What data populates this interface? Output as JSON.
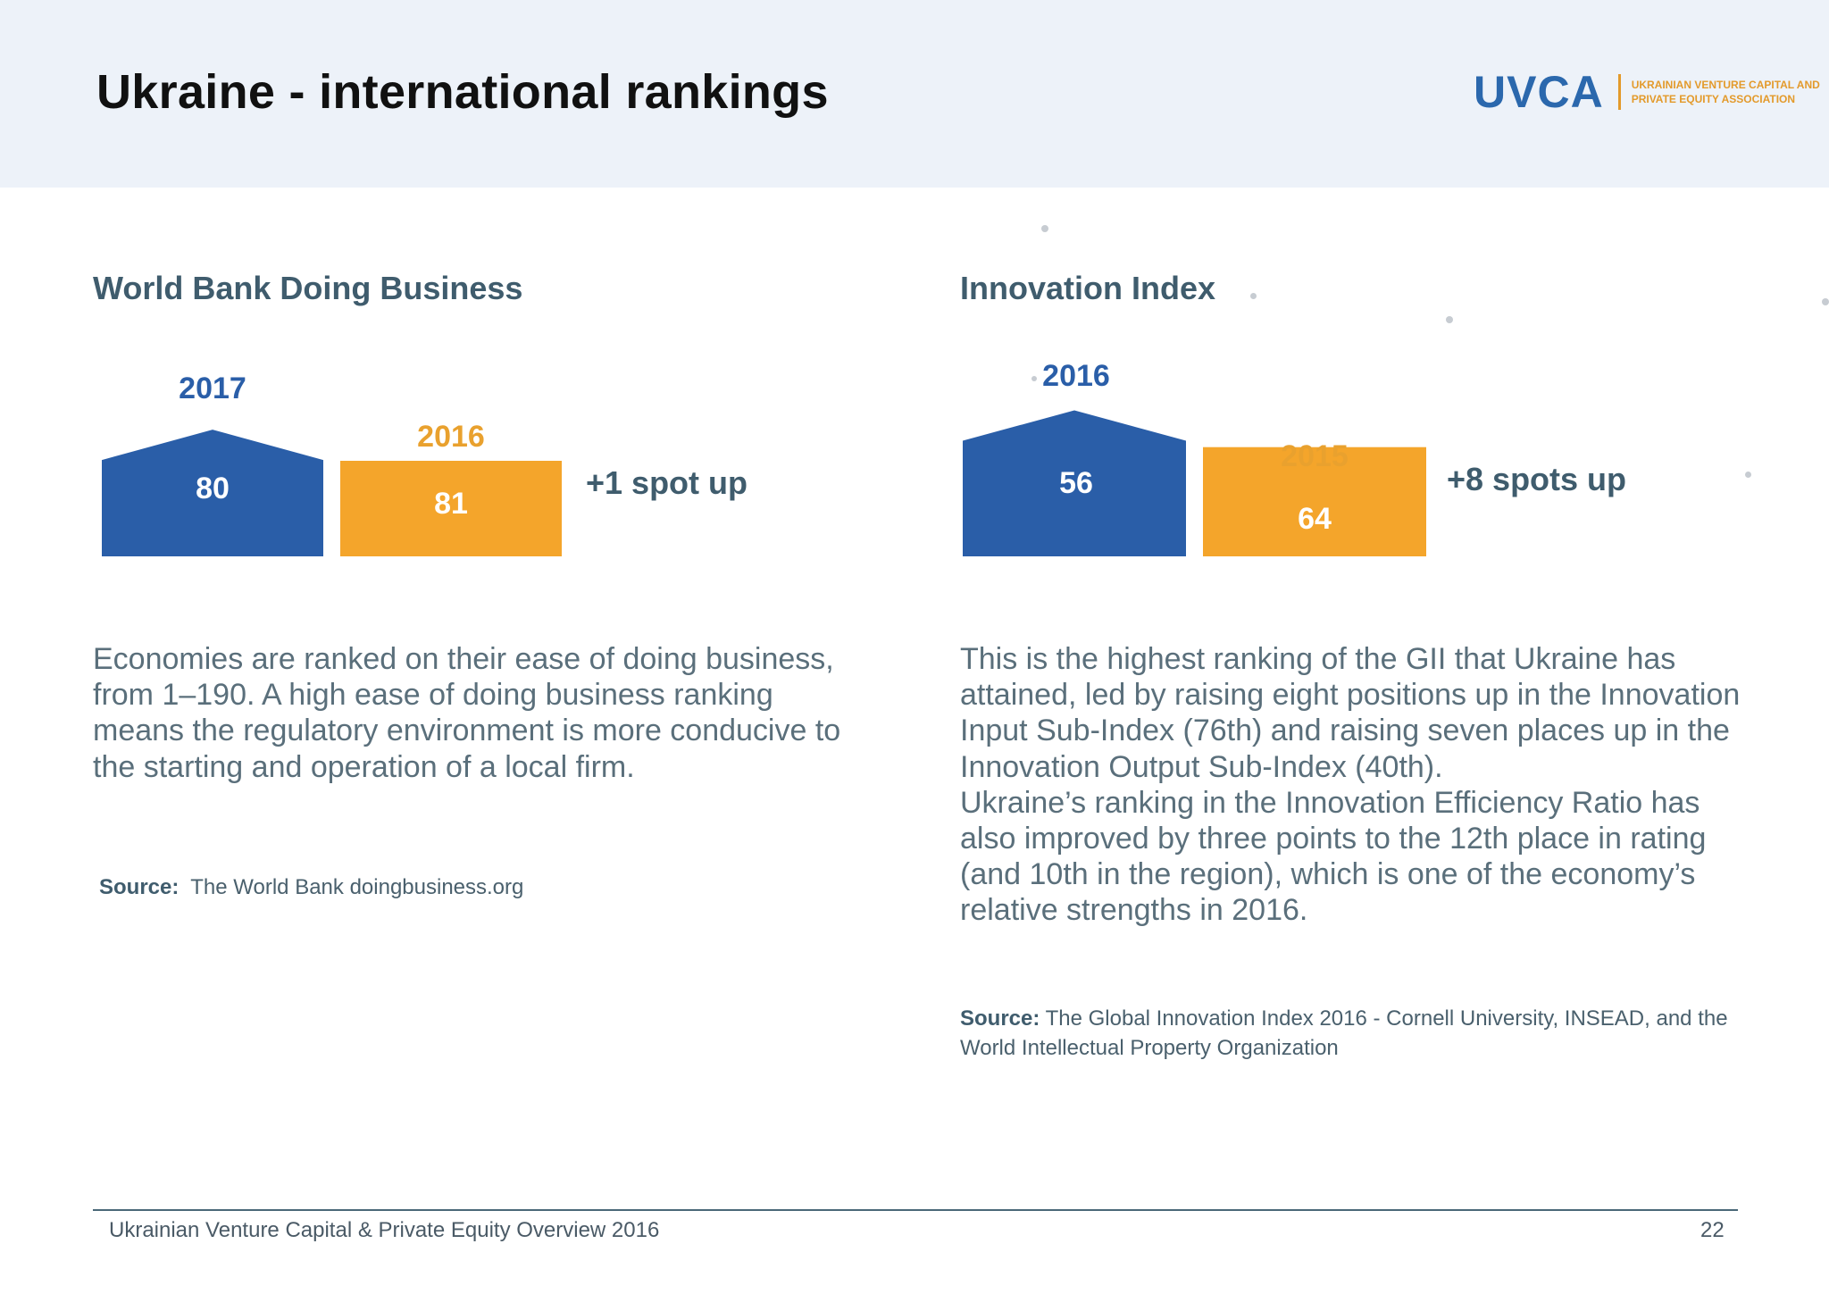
{
  "header": {
    "title": "Ukraine - international rankings",
    "logo": {
      "mark": "UVCA",
      "line1": "UKRAINIAN VENTURE CAPITAL AND",
      "line2": "PRIVATE EQUITY ASSOCIATION"
    }
  },
  "left": {
    "title": "World Bank Doing Business",
    "delta": "+1 spot up",
    "description": "Economies are ranked on their ease of doing business, from 1–190. A high ease of doing business ranking means the regulatory environment is more conducive to the starting and operation of a local firm.",
    "source_label": "Source:",
    "source_text": "The World Bank doingbusiness.org"
  },
  "right": {
    "title": "Innovation Index",
    "delta": "+8 spots up",
    "description_p1": "This is the highest ranking of the GII that Ukraine has attained, led by raising eight positions up in the Innovation Input Sub-Index (76th) and raising seven places up  in the Innovation Output Sub-Index (40th).",
    "description_p2": "Ukraine’s ranking in the Innovation Efficiency Ratio has also improved by three points to the 12th place in rating (and 10th in the region), which is one of the economy’s relative strengths in 2016.",
    "source_label": "Source:",
    "source_text": "The Global Innovation Index 2016 - Cornell University, INSEAD, and the World Intellectual Property Organization"
  },
  "colors": {
    "blue": "#2a5ea8",
    "orange": "#f4a52b",
    "blue_label": "#2a5ea8",
    "orange_label": "#e9a12e"
  },
  "chart_data": [
    {
      "type": "bar",
      "title": "World Bank Doing Business",
      "categories": [
        "2017",
        "2016"
      ],
      "values": [
        80,
        81
      ],
      "colors": [
        "#2a5ea8",
        "#f4a52b"
      ]
    },
    {
      "type": "bar",
      "title": "Innovation Index",
      "categories": [
        "2016",
        "2015"
      ],
      "values": [
        56,
        64
      ],
      "colors": [
        "#2a5ea8",
        "#f4a52b"
      ]
    }
  ],
  "footer": {
    "text": "Ukrainian Venture Capital & Private Equity Overview 2016",
    "page": "22"
  }
}
